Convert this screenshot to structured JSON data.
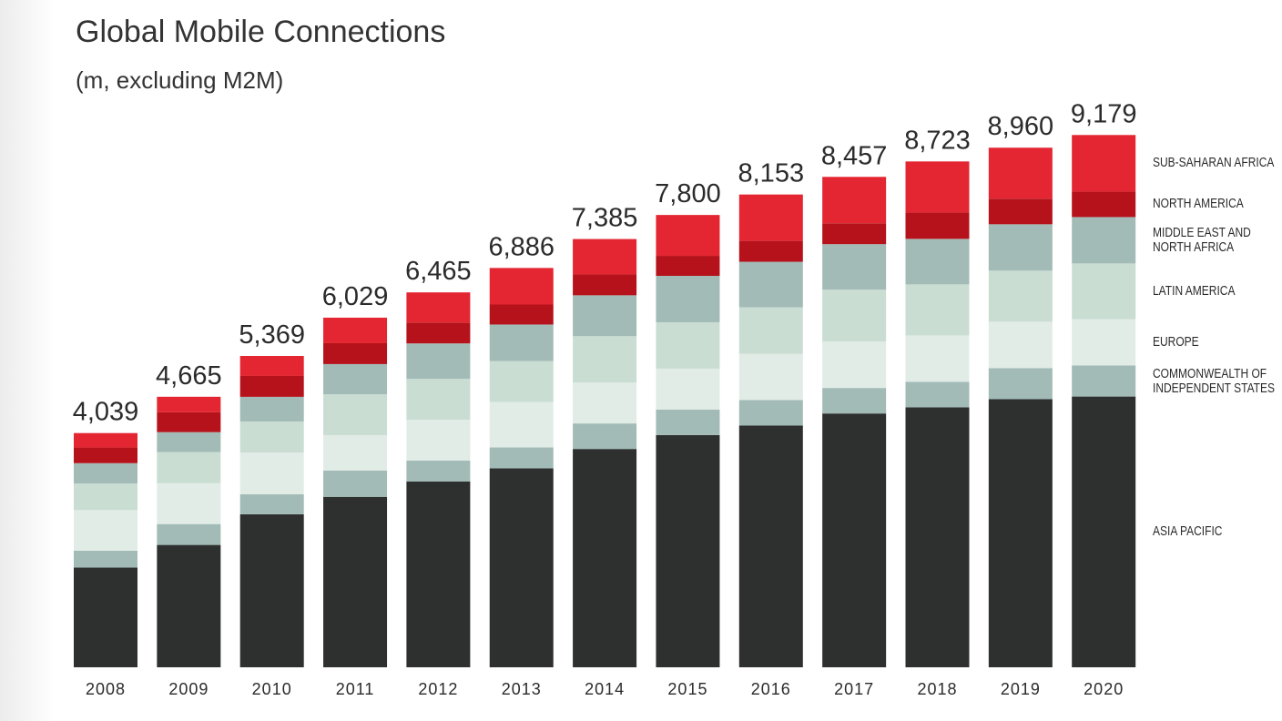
{
  "chart_data": {
    "type": "stacked-bar",
    "title": "Global Mobile Connections",
    "subtitle": "(m, excluding M2M)",
    "categories": [
      "2008",
      "2009",
      "2010",
      "2011",
      "2012",
      "2013",
      "2014",
      "2015",
      "2016",
      "2017",
      "2018",
      "2019",
      "2020"
    ],
    "totals": [
      4039,
      4665,
      5369,
      6029,
      6465,
      6886,
      7385,
      7800,
      8153,
      8457,
      8723,
      8960,
      9179
    ],
    "total_labels": [
      "4,039",
      "4,665",
      "5,369",
      "6,029",
      "6,465",
      "6,886",
      "7,385",
      "7,800",
      "8,153",
      "8,457",
      "8,723",
      "8,960",
      "9,179"
    ],
    "series": [
      {
        "name": "ASIA PACIFIC",
        "color": "#2e3030",
        "values": [
          1720,
          2110,
          2639,
          2939,
          3205,
          3431,
          3765,
          4005,
          4168,
          4377,
          4483,
          4625,
          4669
        ]
      },
      {
        "name": "COMMONWEALTH OF INDEPENDENT STATES",
        "color": "#a2bbb6",
        "values": [
          290,
          360,
          345,
          455,
          360,
          360,
          440,
          440,
          440,
          440,
          440,
          535,
          535
        ]
      },
      {
        "name": "EUROPE",
        "color": "#e2ece7",
        "values": [
          700,
          705,
          720,
          610,
          705,
          785,
          705,
          705,
          800,
          800,
          800,
          800,
          800
        ]
      },
      {
        "name": "LATIN AMERICA",
        "color": "#c9ddd3",
        "values": [
          460,
          535,
          535,
          705,
          705,
          705,
          800,
          800,
          800,
          895,
          880,
          880,
          960
        ]
      },
      {
        "name": "MIDDLE EAST AND NORTH AFRICA",
        "color": "#a2bbb6",
        "values": [
          350,
          345,
          425,
          520,
          610,
          630,
          705,
          800,
          785,
          785,
          785,
          800,
          800
        ]
      },
      {
        "name": "NORTH AMERICA",
        "color": "#b5121b",
        "values": [
          270,
          345,
          360,
          360,
          360,
          345,
          360,
          345,
          360,
          360,
          455,
          440,
          440
        ]
      },
      {
        "name": "SUB-SAHARAN AFRICA",
        "color": "#e32631",
        "values": [
          249,
          265,
          345,
          440,
          520,
          630,
          610,
          705,
          800,
          800,
          880,
          880,
          975
        ]
      }
    ]
  }
}
